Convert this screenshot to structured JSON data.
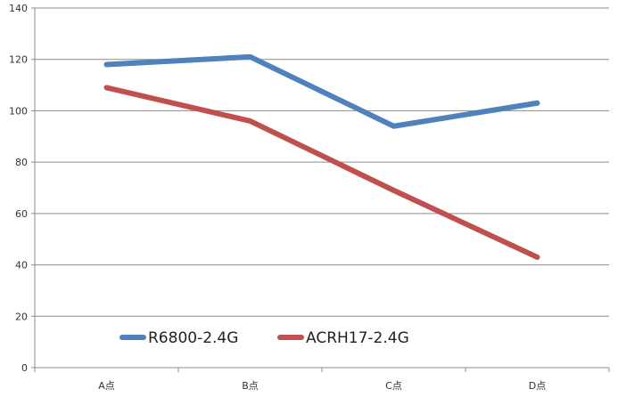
{
  "chart_data": {
    "type": "line",
    "categories": [
      "A点",
      "B点",
      "C点",
      "D点"
    ],
    "series": [
      {
        "name": "R6800-2.4G",
        "values": [
          118,
          121,
          94,
          103
        ],
        "color": "#4F81BD"
      },
      {
        "name": "ACRH17-2.4G",
        "values": [
          109,
          96,
          69,
          43
        ],
        "color": "#C0504D"
      }
    ],
    "title": "",
    "xlabel": "",
    "ylabel": "",
    "ylim": [
      0,
      140
    ],
    "yticks": [
      0,
      20,
      40,
      60,
      80,
      100,
      120,
      140
    ],
    "grid": true,
    "legend_position": "bottom-left inside plot"
  }
}
